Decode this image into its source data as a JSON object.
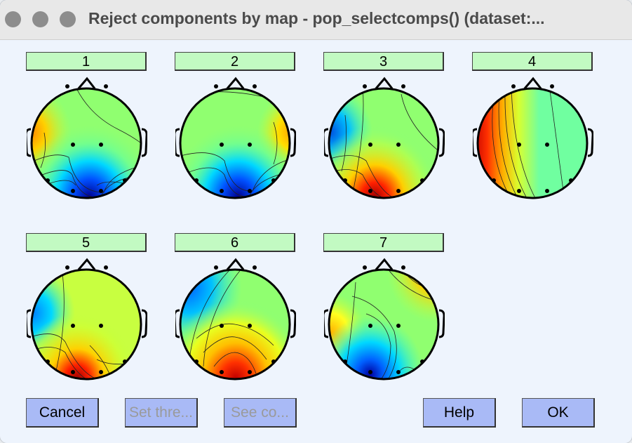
{
  "window": {
    "title": "Reject components by map - pop_selectcomps() (dataset:..."
  },
  "components": [
    {
      "label": "1",
      "colorscale": "jet"
    },
    {
      "label": "2",
      "colorscale": "jet"
    },
    {
      "label": "3",
      "colorscale": "jet"
    },
    {
      "label": "4",
      "colorscale": "jet"
    },
    {
      "label": "5",
      "colorscale": "jet"
    },
    {
      "label": "6",
      "colorscale": "jet"
    },
    {
      "label": "7",
      "colorscale": "jet"
    }
  ],
  "buttons": {
    "cancel": "Cancel",
    "set_threshold": "Set thre...",
    "see_components": "See co...",
    "help": "Help",
    "ok": "OK"
  },
  "colors": {
    "label_bg": "#c2fac2",
    "button_bg": "#a9baf6",
    "window_bg": "#eef4fd"
  }
}
